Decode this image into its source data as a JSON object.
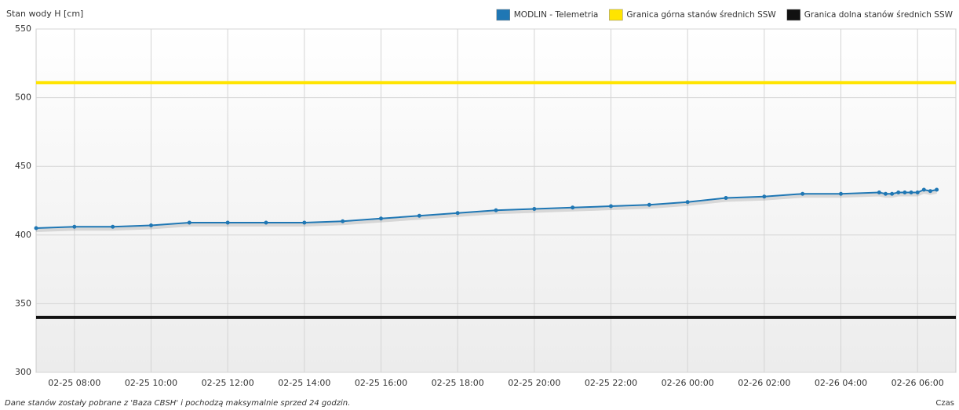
{
  "chart_data": {
    "type": "line",
    "ylabel": "Stan wody H [cm]",
    "xlabel": "Czas",
    "footnote": "Dane stanów zostały pobrane z 'Baza CBSH' i pochodzą maksymalnie sprzed 24 godzin.",
    "xlim": [
      "02-25 07:00",
      "02-26 07:00"
    ],
    "xticks": [
      "02-25 08:00",
      "02-25 10:00",
      "02-25 12:00",
      "02-25 14:00",
      "02-25 16:00",
      "02-25 18:00",
      "02-25 20:00",
      "02-25 22:00",
      "02-26 00:00",
      "02-26 02:00",
      "02-26 04:00",
      "02-26 06:00"
    ],
    "ylim": [
      300,
      550
    ],
    "yticks": [
      300,
      350,
      400,
      450,
      500,
      550
    ],
    "grid": true,
    "legend": "top-right",
    "x": [
      "02-25 07:00",
      "02-25 08:00",
      "02-25 09:00",
      "02-25 10:00",
      "02-25 11:00",
      "02-25 12:00",
      "02-25 13:00",
      "02-25 14:00",
      "02-25 15:00",
      "02-25 16:00",
      "02-25 17:00",
      "02-25 18:00",
      "02-25 19:00",
      "02-25 20:00",
      "02-25 21:00",
      "02-25 22:00",
      "02-25 23:00",
      "02-26 00:00",
      "02-26 01:00",
      "02-26 02:00",
      "02-26 03:00",
      "02-26 04:00",
      "02-26 05:00",
      "02-26 05:10",
      "02-26 05:20",
      "02-26 05:30",
      "02-26 05:40",
      "02-26 05:50",
      "02-26 06:00",
      "02-26 06:10",
      "02-26 06:20",
      "02-26 06:30"
    ],
    "series": [
      {
        "name": "MODLIN - Telemetria",
        "color": "#1f77b4",
        "values": [
          405,
          406,
          406,
          407,
          409,
          409,
          409,
          409,
          410,
          412,
          414,
          416,
          418,
          419,
          420,
          421,
          422,
          424,
          427,
          428,
          430,
          430,
          431,
          430,
          430,
          431,
          431,
          431,
          431,
          433,
          432,
          433
        ]
      },
      {
        "name": "Granica górna stanów średnich SSW",
        "color": "#ffe400",
        "value": 511
      },
      {
        "name": "Granica dolna stanów średnich SSW",
        "color": "#111111",
        "value": 340
      }
    ]
  }
}
